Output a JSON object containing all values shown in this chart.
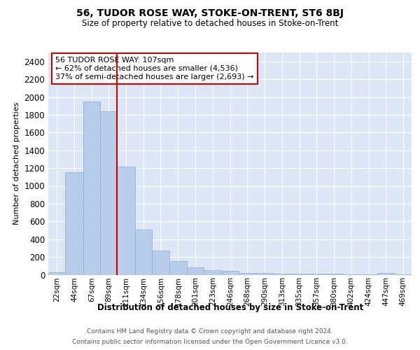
{
  "title": "56, TUDOR ROSE WAY, STOKE-ON-TRENT, ST6 8BJ",
  "subtitle": "Size of property relative to detached houses in Stoke-on-Trent",
  "xlabel": "Distribution of detached houses by size in Stoke-on-Trent",
  "ylabel": "Number of detached properties",
  "categories": [
    "22sqm",
    "44sqm",
    "67sqm",
    "89sqm",
    "111sqm",
    "134sqm",
    "156sqm",
    "178sqm",
    "201sqm",
    "223sqm",
    "246sqm",
    "268sqm",
    "290sqm",
    "313sqm",
    "335sqm",
    "357sqm",
    "380sqm",
    "402sqm",
    "424sqm",
    "447sqm",
    "469sqm"
  ],
  "values": [
    30,
    1150,
    1950,
    1840,
    1220,
    510,
    270,
    150,
    85,
    50,
    42,
    22,
    18,
    15,
    12,
    10,
    8,
    6,
    4,
    20,
    4
  ],
  "bar_color": "#b8cceb",
  "bar_edge_color": "#8aadd4",
  "vline_color": "#cc0000",
  "annotation_text": "56 TUDOR ROSE WAY: 107sqm\n← 62% of detached houses are smaller (4,536)\n37% of semi-detached houses are larger (2,693) →",
  "footer_line1": "Contains HM Land Registry data © Crown copyright and database right 2024.",
  "footer_line2": "Contains public sector information licensed under the Open Government Licence v3.0.",
  "bg_color": "#dce6f5",
  "ylim": [
    0,
    2500
  ],
  "yticks": [
    0,
    200,
    400,
    600,
    800,
    1000,
    1200,
    1400,
    1600,
    1800,
    2000,
    2200,
    2400
  ],
  "bin_edges": [
    22,
    44,
    67,
    89,
    111,
    134,
    156,
    178,
    201,
    223,
    246,
    268,
    290,
    313,
    335,
    357,
    380,
    402,
    424,
    447,
    469,
    491
  ]
}
